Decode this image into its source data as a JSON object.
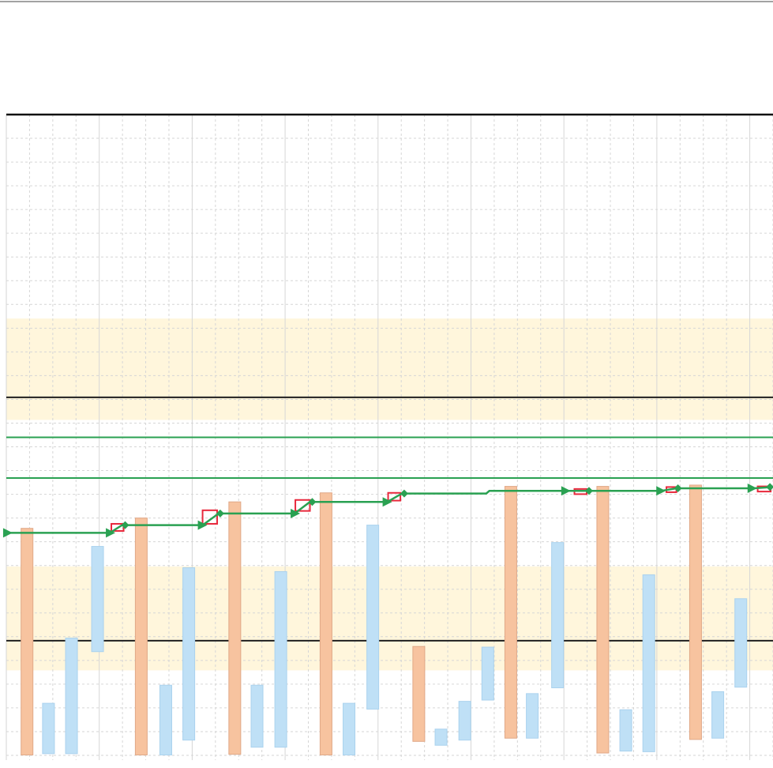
{
  "chart_data": {
    "type": "bar",
    "title": "",
    "xlabel": "",
    "ylabel": "",
    "grid": true,
    "y_range_top": 100,
    "y_range_bottom": 0,
    "shaded_bands": [
      {
        "from": 68.4,
        "to": 52.7,
        "color": "#fff6dc"
      },
      {
        "from": 30.0,
        "to": 13.9,
        "color": "#fff6dc"
      }
    ],
    "reference_lines": [
      {
        "value": 100.0,
        "color": "#111111"
      },
      {
        "value": 56.2,
        "color": "#1f1f1f"
      },
      {
        "value": 50.0,
        "color": "#2aa152"
      },
      {
        "value": 43.7,
        "color": "#2aa152"
      },
      {
        "value": 18.5,
        "color": "#1f1f1f"
      }
    ],
    "colors": {
      "background": "#ffffff",
      "grid": "#d6d6d6",
      "orange_fill": "#f7c39f",
      "orange_border": "#e0a887",
      "blue_fill": "#bfe0f6",
      "blue_border": "#aad2ee",
      "step_line": "#2aa152",
      "marker": "#2aa152",
      "red_box": "#e8283c"
    },
    "bars": [
      {
        "series": "orange",
        "x": 2.7,
        "top": 35.9,
        "bottom": 0.8
      },
      {
        "series": "blue",
        "x": 5.5,
        "top": 8.8,
        "bottom": 1.0
      },
      {
        "series": "blue",
        "x": 8.5,
        "top": 18.9,
        "bottom": 1.0
      },
      {
        "series": "blue",
        "x": 11.9,
        "top": 33.1,
        "bottom": 16.8
      },
      {
        "series": "orange",
        "x": 17.6,
        "top": 37.5,
        "bottom": 0.8
      },
      {
        "series": "blue",
        "x": 20.8,
        "top": 11.6,
        "bottom": 0.8
      },
      {
        "series": "blue",
        "x": 23.8,
        "top": 29.8,
        "bottom": 3.1
      },
      {
        "series": "orange",
        "x": 29.8,
        "top": 40.0,
        "bottom": 0.9
      },
      {
        "series": "blue",
        "x": 32.7,
        "top": 11.6,
        "bottom": 2.0
      },
      {
        "series": "blue",
        "x": 35.8,
        "top": 29.2,
        "bottom": 2.0
      },
      {
        "series": "orange",
        "x": 41.7,
        "top": 41.4,
        "bottom": 0.8
      },
      {
        "series": "blue",
        "x": 44.7,
        "top": 8.8,
        "bottom": 0.8
      },
      {
        "series": "blue",
        "x": 47.8,
        "top": 36.4,
        "bottom": 7.9
      },
      {
        "series": "orange",
        "x": 53.8,
        "top": 17.6,
        "bottom": 2.9
      },
      {
        "series": "blue",
        "x": 56.7,
        "top": 4.8,
        "bottom": 2.3
      },
      {
        "series": "blue",
        "x": 59.8,
        "top": 9.1,
        "bottom": 3.1
      },
      {
        "series": "blue",
        "x": 62.8,
        "top": 17.5,
        "bottom": 9.3
      },
      {
        "series": "orange",
        "x": 65.8,
        "top": 42.4,
        "bottom": 3.4
      },
      {
        "series": "blue",
        "x": 68.6,
        "top": 10.3,
        "bottom": 3.4
      },
      {
        "series": "blue",
        "x": 71.9,
        "top": 33.7,
        "bottom": 11.2
      },
      {
        "series": "orange",
        "x": 77.8,
        "top": 42.4,
        "bottom": 1.1
      },
      {
        "series": "blue",
        "x": 80.8,
        "top": 7.8,
        "bottom": 1.4
      },
      {
        "series": "blue",
        "x": 83.8,
        "top": 28.7,
        "bottom": 1.3
      },
      {
        "series": "orange",
        "x": 89.9,
        "top": 42.6,
        "bottom": 3.2
      },
      {
        "series": "blue",
        "x": 92.8,
        "top": 10.6,
        "bottom": 3.4
      },
      {
        "series": "blue",
        "x": 95.8,
        "top": 25.0,
        "bottom": 11.3
      }
    ],
    "step_line": [
      [
        0.0,
        35.2
      ],
      [
        13.5,
        35.2
      ],
      [
        15.1,
        36.4
      ],
      [
        25.6,
        36.4
      ],
      [
        27.7,
        38.2
      ],
      [
        37.6,
        38.2
      ],
      [
        39.6,
        40.0
      ],
      [
        49.7,
        40.0
      ],
      [
        51.6,
        41.3
      ],
      [
        62.6,
        41.3
      ],
      [
        63.0,
        41.7
      ],
      [
        73.2,
        41.7
      ],
      [
        75.9,
        41.7
      ],
      [
        85.4,
        41.7
      ],
      [
        87.4,
        42.1
      ],
      [
        97.5,
        42.1
      ],
      [
        100.0,
        42.3
      ]
    ],
    "arrow_markers": [
      [
        0.2,
        35.2
      ],
      [
        13.6,
        35.2
      ],
      [
        25.6,
        36.4
      ],
      [
        37.7,
        38.2
      ],
      [
        49.7,
        40.0
      ],
      [
        73.0,
        41.7
      ],
      [
        85.4,
        41.7
      ],
      [
        97.3,
        42.1
      ]
    ],
    "diamond_markers": [
      [
        15.5,
        36.4
      ],
      [
        27.9,
        38.2
      ],
      [
        39.9,
        40.0
      ],
      [
        51.9,
        41.3
      ],
      [
        76.0,
        41.7
      ],
      [
        87.6,
        42.1
      ],
      [
        99.6,
        42.3
      ]
    ],
    "red_boxes": [
      {
        "x0": 13.7,
        "x1": 15.3,
        "top": 36.6,
        "bottom": 35.5
      },
      {
        "x0": 25.6,
        "x1": 27.5,
        "top": 38.7,
        "bottom": 36.6
      },
      {
        "x0": 37.7,
        "x1": 39.6,
        "top": 40.3,
        "bottom": 38.6
      },
      {
        "x0": 49.8,
        "x1": 51.4,
        "top": 41.4,
        "bottom": 40.2
      },
      {
        "x0": 74.1,
        "x1": 75.7,
        "top": 42.0,
        "bottom": 41.2
      },
      {
        "x0": 86.1,
        "x1": 87.4,
        "top": 42.3,
        "bottom": 41.5
      },
      {
        "x0": 98.0,
        "x1": 99.7,
        "top": 42.4,
        "bottom": 41.6
      }
    ],
    "header_line": {
      "value": 100.0
    }
  }
}
